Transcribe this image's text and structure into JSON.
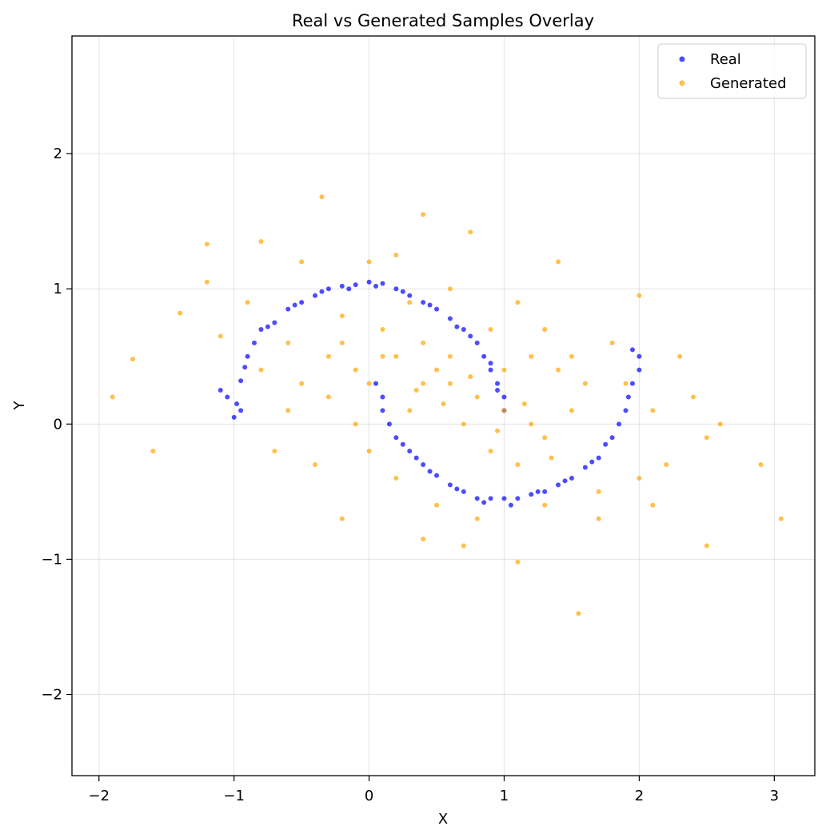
{
  "chart_data": {
    "type": "scatter",
    "title": "Real vs Generated Samples Overlay",
    "xlabel": "X",
    "ylabel": "Y",
    "xlim": [
      -2.2,
      3.3
    ],
    "ylim": [
      -2.6,
      2.87
    ],
    "xticks": [
      -2,
      -1,
      0,
      1,
      2,
      3
    ],
    "xtick_labels": [
      "−2",
      "−1",
      "0",
      "1",
      "2",
      "3"
    ],
    "yticks": [
      -2,
      -1,
      0,
      1,
      2
    ],
    "ytick_labels": [
      "−2",
      "−1",
      "0",
      "1",
      "2"
    ],
    "grid": true,
    "legend_position": "top-right",
    "series": [
      {
        "name": "Real",
        "color": "#0000ff",
        "points": [
          [
            -1.0,
            0.05
          ],
          [
            -0.95,
            0.32
          ],
          [
            -0.9,
            0.5
          ],
          [
            -0.85,
            0.6
          ],
          [
            -0.8,
            0.7
          ],
          [
            -0.7,
            0.75
          ],
          [
            -0.6,
            0.85
          ],
          [
            -0.5,
            0.9
          ],
          [
            -0.4,
            0.95
          ],
          [
            -0.3,
            1.0
          ],
          [
            -0.2,
            1.02
          ],
          [
            -0.1,
            1.03
          ],
          [
            0.0,
            1.05
          ],
          [
            0.1,
            1.04
          ],
          [
            0.2,
            1.0
          ],
          [
            0.3,
            0.95
          ],
          [
            0.4,
            0.9
          ],
          [
            0.5,
            0.85
          ],
          [
            0.6,
            0.78
          ],
          [
            0.7,
            0.7
          ],
          [
            0.8,
            0.6
          ],
          [
            0.85,
            0.5
          ],
          [
            0.9,
            0.4
          ],
          [
            0.95,
            0.3
          ],
          [
            1.0,
            0.2
          ],
          [
            1.0,
            0.1
          ],
          [
            0.05,
            0.3
          ],
          [
            0.1,
            0.1
          ],
          [
            0.15,
            0.0
          ],
          [
            0.2,
            -0.1
          ],
          [
            0.3,
            -0.2
          ],
          [
            0.4,
            -0.3
          ],
          [
            0.5,
            -0.38
          ],
          [
            0.6,
            -0.45
          ],
          [
            0.7,
            -0.5
          ],
          [
            0.8,
            -0.55
          ],
          [
            0.9,
            -0.55
          ],
          [
            1.0,
            -0.55
          ],
          [
            1.1,
            -0.55
          ],
          [
            1.2,
            -0.52
          ],
          [
            1.3,
            -0.5
          ],
          [
            1.4,
            -0.45
          ],
          [
            1.5,
            -0.4
          ],
          [
            1.6,
            -0.32
          ],
          [
            1.7,
            -0.25
          ],
          [
            1.8,
            -0.1
          ],
          [
            1.85,
            0.0
          ],
          [
            1.9,
            0.1
          ],
          [
            1.92,
            0.2
          ],
          [
            1.95,
            0.3
          ],
          [
            2.0,
            0.4
          ],
          [
            2.0,
            0.5
          ],
          [
            1.95,
            0.55
          ],
          [
            -1.05,
            0.2
          ],
          [
            -1.1,
            0.25
          ],
          [
            -0.95,
            0.1
          ],
          [
            0.25,
            -0.15
          ],
          [
            0.45,
            -0.35
          ],
          [
            0.65,
            -0.48
          ],
          [
            0.85,
            -0.58
          ],
          [
            1.05,
            -0.6
          ],
          [
            1.25,
            -0.5
          ],
          [
            1.45,
            -0.42
          ],
          [
            1.65,
            -0.28
          ],
          [
            1.75,
            -0.15
          ],
          [
            -0.75,
            0.72
          ],
          [
            -0.55,
            0.88
          ],
          [
            -0.35,
            0.98
          ],
          [
            -0.15,
            1.0
          ],
          [
            0.05,
            1.02
          ],
          [
            0.25,
            0.98
          ],
          [
            0.45,
            0.88
          ],
          [
            0.65,
            0.72
          ],
          [
            0.75,
            0.65
          ],
          [
            0.9,
            0.45
          ],
          [
            0.95,
            0.25
          ],
          [
            -0.98,
            0.15
          ],
          [
            -0.92,
            0.42
          ],
          [
            0.1,
            0.2
          ],
          [
            0.35,
            -0.25
          ]
        ]
      },
      {
        "name": "Generated",
        "color": "#ffa500",
        "points": [
          [
            -0.3,
            0.5
          ],
          [
            -0.2,
            0.6
          ],
          [
            -0.1,
            0.4
          ],
          [
            0.0,
            0.3
          ],
          [
            0.2,
            0.5
          ],
          [
            0.4,
            0.6
          ],
          [
            0.5,
            0.4
          ],
          [
            0.6,
            0.3
          ],
          [
            0.8,
            0.2
          ],
          [
            1.0,
            0.1
          ],
          [
            1.2,
            0.0
          ],
          [
            1.3,
            -0.1
          ],
          [
            1.5,
            0.1
          ],
          [
            1.6,
            0.3
          ],
          [
            1.4,
            0.4
          ],
          [
            1.2,
            0.5
          ],
          [
            0.7,
            0.0
          ],
          [
            0.9,
            -0.2
          ],
          [
            1.1,
            -0.3
          ],
          [
            0.3,
            0.1
          ],
          [
            0.1,
            0.7
          ],
          [
            -0.5,
            0.3
          ],
          [
            -0.6,
            0.1
          ],
          [
            -0.7,
            -0.2
          ],
          [
            -0.4,
            -0.3
          ],
          [
            0.2,
            -0.4
          ],
          [
            0.5,
            -0.6
          ],
          [
            0.8,
            -0.7
          ],
          [
            1.3,
            -0.6
          ],
          [
            1.7,
            -0.5
          ],
          [
            2.0,
            -0.4
          ],
          [
            2.2,
            -0.3
          ],
          [
            2.4,
            0.2
          ],
          [
            2.5,
            -0.1
          ],
          [
            2.6,
            0.0
          ],
          [
            2.9,
            -0.3
          ],
          [
            3.05,
            -0.7
          ],
          [
            2.5,
            -0.9
          ],
          [
            1.55,
            -1.4
          ],
          [
            1.1,
            -1.02
          ],
          [
            -1.2,
            1.33
          ],
          [
            -0.8,
            1.35
          ],
          [
            -0.35,
            1.68
          ],
          [
            0.4,
            1.55
          ],
          [
            0.75,
            1.42
          ],
          [
            1.4,
            1.2
          ],
          [
            2.0,
            0.95
          ],
          [
            -1.9,
            0.2
          ],
          [
            -1.75,
            0.48
          ],
          [
            -1.6,
            -0.2
          ],
          [
            -1.4,
            0.82
          ],
          [
            -1.2,
            1.05
          ],
          [
            -0.2,
            -0.7
          ],
          [
            0.4,
            -0.85
          ],
          [
            0.7,
            -0.9
          ],
          [
            0.0,
            1.2
          ],
          [
            0.2,
            1.25
          ],
          [
            -0.5,
            1.2
          ],
          [
            -0.9,
            0.9
          ],
          [
            -1.1,
            0.65
          ],
          [
            -0.3,
            0.2
          ],
          [
            -0.1,
            0.0
          ],
          [
            0.0,
            -0.2
          ],
          [
            0.6,
            0.5
          ],
          [
            0.9,
            0.7
          ],
          [
            1.1,
            0.9
          ],
          [
            1.3,
            0.7
          ],
          [
            1.5,
            0.5
          ],
          [
            1.8,
            0.6
          ],
          [
            1.9,
            0.3
          ],
          [
            2.1,
            0.1
          ],
          [
            2.3,
            0.5
          ],
          [
            1.0,
            0.4
          ],
          [
            0.4,
            0.3
          ],
          [
            -0.8,
            0.4
          ],
          [
            -0.6,
            0.6
          ],
          [
            0.3,
            0.9
          ],
          [
            0.6,
            1.0
          ],
          [
            1.7,
            -0.7
          ],
          [
            2.1,
            -0.6
          ],
          [
            -0.2,
            0.8
          ],
          [
            0.1,
            0.5
          ],
          [
            0.35,
            0.25
          ],
          [
            0.55,
            0.15
          ],
          [
            0.75,
            0.35
          ],
          [
            0.95,
            -0.05
          ],
          [
            1.15,
            0.15
          ],
          [
            1.35,
            -0.25
          ]
        ]
      }
    ]
  }
}
